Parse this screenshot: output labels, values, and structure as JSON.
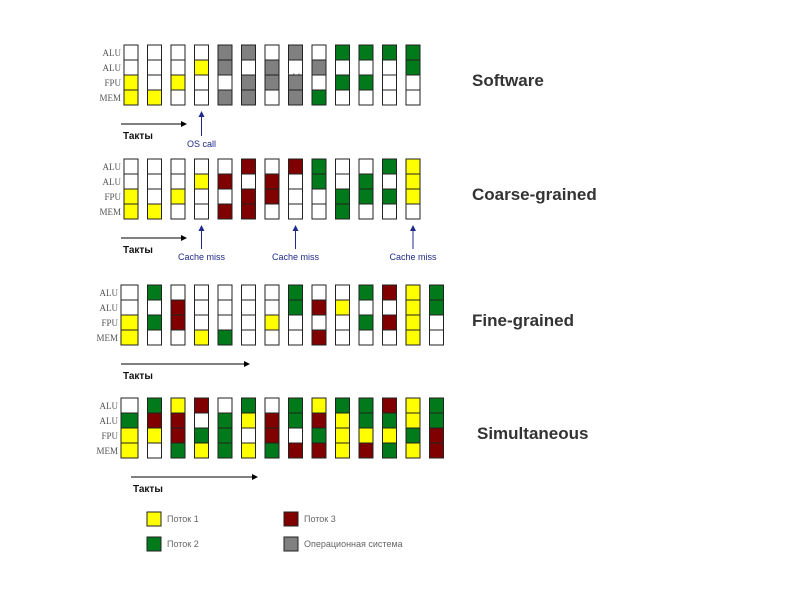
{
  "colors": {
    "Y": "#ffff00",
    "G": "#007a1a",
    "R": "#800000",
    "S": "#808080",
    "W": "#ffffff",
    "border": "#222222",
    "annotation": "#1f2a8a"
  },
  "row_labels": [
    "ALU",
    "ALU",
    "FPU",
    "MEM"
  ],
  "axis_label": "Такты",
  "ellipsis": "· · ·",
  "panels": [
    {
      "id": "software",
      "title": "Software",
      "grid": [
        [
          "W",
          "W",
          "W",
          "W",
          "S",
          "S",
          "W",
          "S",
          "W",
          "G",
          "G",
          "G",
          "G"
        ],
        [
          "W",
          "W",
          "W",
          "Y",
          "S",
          "W",
          "S",
          "W",
          "S",
          "W",
          "W",
          "W",
          "G"
        ],
        [
          "Y",
          "W",
          "Y",
          "W",
          "W",
          "S",
          "S",
          "S",
          "W",
          "G",
          "G",
          "W",
          "W"
        ],
        [
          "Y",
          "Y",
          "W",
          "W",
          "S",
          "S",
          "W",
          "S",
          "G",
          "W",
          "W",
          "W",
          "W"
        ]
      ],
      "ellipsis_after": 6,
      "annotations": [
        {
          "col": 3,
          "text": "OS call"
        }
      ]
    },
    {
      "id": "coarse",
      "title": "Coarse-grained",
      "grid": [
        [
          "W",
          "W",
          "W",
          "W",
          "W",
          "R",
          "W",
          "R",
          "G",
          "W",
          "W",
          "G",
          "Y"
        ],
        [
          "W",
          "W",
          "W",
          "Y",
          "R",
          "W",
          "R",
          "W",
          "G",
          "W",
          "G",
          "W",
          "Y"
        ],
        [
          "Y",
          "W",
          "Y",
          "W",
          "W",
          "R",
          "R",
          "W",
          "W",
          "G",
          "G",
          "G",
          "Y"
        ],
        [
          "Y",
          "Y",
          "W",
          "W",
          "R",
          "R",
          "W",
          "W",
          "W",
          "G",
          "W",
          "W",
          "W"
        ]
      ],
      "annotations": [
        {
          "col": 3,
          "text": "Cache miss"
        },
        {
          "col": 7,
          "text": "Cache miss"
        },
        {
          "col": 12,
          "text": "Cache miss"
        }
      ]
    },
    {
      "id": "fine",
      "title": "Fine-grained",
      "grid": [
        [
          "W",
          "G",
          "W",
          "W",
          "W",
          "W",
          "W",
          "G",
          "W",
          "W",
          "G",
          "R",
          "Y",
          "G"
        ],
        [
          "W",
          "W",
          "R",
          "W",
          "W",
          "W",
          "W",
          "G",
          "R",
          "Y",
          "W",
          "W",
          "Y",
          "G"
        ],
        [
          "Y",
          "G",
          "R",
          "W",
          "W",
          "W",
          "Y",
          "W",
          "W",
          "W",
          "G",
          "R",
          "Y",
          "W"
        ],
        [
          "Y",
          "W",
          "W",
          "Y",
          "G",
          "W",
          "W",
          "W",
          "R",
          "W",
          "W",
          "W",
          "Y",
          "W"
        ]
      ],
      "annotations": []
    },
    {
      "id": "simultaneous",
      "title": "Simultaneous",
      "grid": [
        [
          "W",
          "G",
          "Y",
          "R",
          "W",
          "G",
          "W",
          "G",
          "Y",
          "G",
          "G",
          "R",
          "Y",
          "G"
        ],
        [
          "G",
          "R",
          "R",
          "W",
          "G",
          "Y",
          "R",
          "G",
          "R",
          "Y",
          "G",
          "G",
          "Y",
          "G"
        ],
        [
          "Y",
          "Y",
          "R",
          "G",
          "G",
          "W",
          "R",
          "W",
          "G",
          "Y",
          "Y",
          "Y",
          "G",
          "R"
        ],
        [
          "Y",
          "W",
          "G",
          "Y",
          "G",
          "Y",
          "G",
          "R",
          "R",
          "Y",
          "R",
          "G",
          "Y",
          "R"
        ]
      ],
      "annotations": []
    }
  ],
  "legend": [
    {
      "color": "Y",
      "label": "Поток 1"
    },
    {
      "color": "R",
      "label": "Поток 3"
    },
    {
      "color": "G",
      "label": "Поток 2"
    },
    {
      "color": "S",
      "label": "Операционная система"
    }
  ]
}
